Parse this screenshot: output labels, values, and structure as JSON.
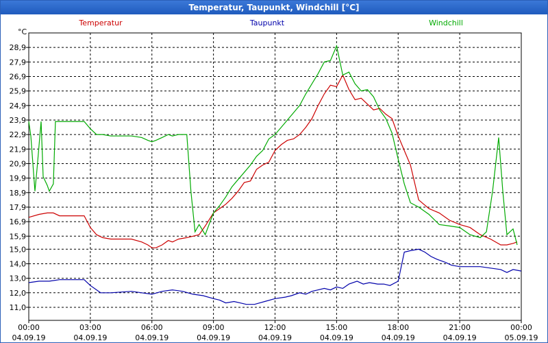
{
  "window": {
    "title": "Temperatur, Taupunkt, Windchill [°C]"
  },
  "chart_data": {
    "type": "line",
    "title": "Temperatur, Taupunkt, Windchill [°C]",
    "ylabel": "°C",
    "ylim": [
      10.1,
      29.9
    ],
    "yticks": [
      "11,0",
      "12,0",
      "13,0",
      "14,0",
      "15,0",
      "15,9",
      "16,9",
      "17,9",
      "18,9",
      "19,9",
      "20,9",
      "21,9",
      "22,9",
      "23,9",
      "24,9",
      "25,9",
      "26,9",
      "27,9",
      "28,9"
    ],
    "xlim": [
      0,
      24
    ],
    "xticks": [
      {
        "time": "00:00",
        "date": "04.09.19"
      },
      {
        "time": "03:00",
        "date": "04.09.19"
      },
      {
        "time": "06:00",
        "date": "04.09.19"
      },
      {
        "time": "09:00",
        "date": "04.09.19"
      },
      {
        "time": "12:00",
        "date": "04.09.19"
      },
      {
        "time": "15:00",
        "date": "04.09.19"
      },
      {
        "time": "18:00",
        "date": "04.09.19"
      },
      {
        "time": "21:00",
        "date": "04.09.19"
      },
      {
        "time": "00:00",
        "date": "05.09.19"
      }
    ],
    "grid": true,
    "series": [
      {
        "name": "Temperatur",
        "color": "#cc0000",
        "x": [
          0,
          0.5,
          0.9,
          1.2,
          1.5,
          2.0,
          2.7,
          3.0,
          3.3,
          3.6,
          4.0,
          5.0,
          5.5,
          5.8,
          6.0,
          6.2,
          6.5,
          6.8,
          7.0,
          7.3,
          7.7,
          8.0,
          8.3,
          8.6,
          9.0,
          9.3,
          9.6,
          9.9,
          10.2,
          10.5,
          10.8,
          11.1,
          11.4,
          11.7,
          12.0,
          12.3,
          12.6,
          12.9,
          13.2,
          13.5,
          13.8,
          14.1,
          14.4,
          14.7,
          15.0,
          15.3,
          15.6,
          15.9,
          16.2,
          16.5,
          16.8,
          17.1,
          17.4,
          17.7,
          18.0,
          18.3,
          18.6,
          19.0,
          19.5,
          20.0,
          20.5,
          21.0,
          21.5,
          22.0,
          22.5,
          23.0,
          23.3,
          23.6,
          23.8
        ],
        "values": [
          17.2,
          17.4,
          17.5,
          17.5,
          17.3,
          17.3,
          17.3,
          16.5,
          16.0,
          15.8,
          15.7,
          15.7,
          15.5,
          15.3,
          15.1,
          15.1,
          15.3,
          15.6,
          15.5,
          15.7,
          15.8,
          15.9,
          16.0,
          16.6,
          17.5,
          17.8,
          18.1,
          18.5,
          19.0,
          19.6,
          19.7,
          20.5,
          20.8,
          21.0,
          21.8,
          22.2,
          22.5,
          22.6,
          22.9,
          23.4,
          24.0,
          24.9,
          25.7,
          26.3,
          26.2,
          27.0,
          26.0,
          25.3,
          25.4,
          25.0,
          24.6,
          24.7,
          24.3,
          24.0,
          22.8,
          21.8,
          20.8,
          18.4,
          17.8,
          17.5,
          17.0,
          16.7,
          16.5,
          16.0,
          15.7,
          15.3,
          15.3,
          15.4,
          15.5
        ]
      },
      {
        "name": "Taupunkt",
        "color": "#0000aa",
        "x": [
          0,
          0.5,
          1.0,
          1.5,
          2.0,
          2.7,
          3.0,
          3.5,
          4.0,
          5.0,
          5.5,
          6.0,
          6.5,
          7.0,
          7.5,
          8.0,
          8.5,
          9.0,
          9.3,
          9.6,
          10.0,
          10.3,
          10.6,
          11.0,
          11.5,
          12.0,
          12.5,
          12.8,
          13.2,
          13.5,
          13.8,
          14.1,
          14.4,
          14.7,
          15.0,
          15.3,
          15.6,
          16.0,
          16.3,
          16.6,
          17.0,
          17.3,
          17.6,
          18.0,
          18.3,
          18.6,
          19.0,
          19.3,
          19.6,
          19.9,
          20.3,
          20.6,
          21.0,
          21.5,
          22.0,
          22.5,
          23.0,
          23.3,
          23.6,
          24.0
        ],
        "values": [
          12.7,
          12.8,
          12.8,
          12.9,
          12.9,
          12.9,
          12.5,
          12.0,
          12.0,
          12.1,
          12.0,
          11.9,
          12.1,
          12.2,
          12.1,
          11.9,
          11.8,
          11.6,
          11.5,
          11.3,
          11.4,
          11.3,
          11.2,
          11.2,
          11.4,
          11.6,
          11.7,
          11.8,
          12.0,
          11.9,
          12.1,
          12.2,
          12.3,
          12.2,
          12.4,
          12.3,
          12.6,
          12.8,
          12.6,
          12.7,
          12.6,
          12.6,
          12.5,
          12.8,
          14.8,
          14.9,
          15.0,
          14.8,
          14.5,
          14.3,
          14.1,
          13.9,
          13.8,
          13.8,
          13.8,
          13.7,
          13.6,
          13.4,
          13.6,
          13.5
        ]
      },
      {
        "name": "Windchill",
        "color": "#00aa00",
        "x": [
          0,
          0.1,
          0.3,
          0.4,
          0.6,
          0.7,
          0.9,
          1.0,
          1.2,
          1.3,
          2.0,
          2.7,
          3.0,
          3.3,
          3.6,
          4.0,
          5.0,
          5.5,
          5.8,
          6.0,
          6.2,
          6.5,
          6.8,
          7.0,
          7.3,
          7.7,
          7.9,
          8.1,
          8.3,
          8.6,
          9.0,
          9.3,
          9.6,
          9.9,
          10.2,
          10.5,
          10.8,
          11.1,
          11.4,
          11.7,
          12.0,
          12.3,
          12.6,
          12.9,
          13.2,
          13.5,
          13.8,
          14.1,
          14.4,
          14.7,
          15.0,
          15.3,
          15.6,
          15.9,
          16.2,
          16.5,
          16.8,
          17.1,
          17.4,
          17.7,
          18.0,
          18.3,
          18.6,
          19.0,
          19.5,
          20.0,
          20.5,
          21.0,
          21.5,
          22.0,
          22.3,
          22.6,
          22.9,
          23.1,
          23.3,
          23.6,
          23.8
        ],
        "values": [
          23.8,
          22.8,
          19.0,
          20.5,
          23.8,
          20.0,
          19.4,
          19.0,
          19.5,
          23.8,
          23.8,
          23.8,
          23.3,
          22.9,
          22.9,
          22.8,
          22.8,
          22.7,
          22.5,
          22.4,
          22.5,
          22.7,
          22.9,
          22.8,
          22.9,
          22.9,
          19.0,
          16.2,
          16.7,
          16.0,
          17.5,
          18.0,
          18.6,
          19.3,
          19.8,
          20.3,
          20.8,
          21.4,
          21.8,
          22.6,
          22.9,
          23.4,
          23.9,
          24.4,
          24.9,
          25.7,
          26.4,
          27.1,
          27.9,
          28.0,
          29.0,
          27.0,
          27.2,
          26.4,
          25.9,
          26.0,
          25.5,
          24.6,
          24.0,
          23.0,
          21.2,
          19.5,
          18.2,
          17.9,
          17.4,
          16.7,
          16.6,
          16.5,
          16.0,
          15.8,
          16.2,
          19.0,
          22.7,
          19.0,
          16.0,
          16.4,
          15.3
        ]
      }
    ]
  }
}
